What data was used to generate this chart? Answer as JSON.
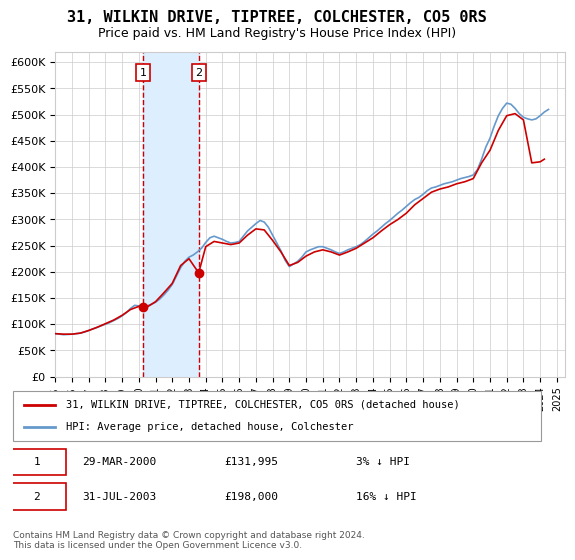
{
  "title": "31, WILKIN DRIVE, TIPTREE, COLCHESTER, CO5 0RS",
  "subtitle": "Price paid vs. HM Land Registry's House Price Index (HPI)",
  "ylabel_ticks": [
    "£0",
    "£50K",
    "£100K",
    "£150K",
    "£200K",
    "£250K",
    "£300K",
    "£350K",
    "£400K",
    "£450K",
    "£500K",
    "£550K",
    "£600K"
  ],
  "ylim": [
    0,
    620000
  ],
  "xlim_start": 1995.0,
  "xlim_end": 2025.5,
  "legend_line1": "31, WILKIN DRIVE, TIPTREE, COLCHESTER, CO5 0RS (detached house)",
  "legend_line2": "HPI: Average price, detached house, Colchester",
  "transaction1_date": "29-MAR-2000",
  "transaction1_price": "£131,995",
  "transaction1_pct": "3% ↓ HPI",
  "transaction2_date": "31-JUL-2003",
  "transaction2_price": "£198,000",
  "transaction2_pct": "16% ↓ HPI",
  "footer": "Contains HM Land Registry data © Crown copyright and database right 2024.\nThis data is licensed under the Open Government Licence v3.0.",
  "line_color_red": "#cc0000",
  "line_color_blue": "#6699cc",
  "shading_color": "#ddeeff",
  "marker1_x": 2000.24,
  "marker1_y": 131995,
  "marker2_x": 2003.58,
  "marker2_y": 198000,
  "hpi_data_x": [
    1995.0,
    1995.25,
    1995.5,
    1995.75,
    1996.0,
    1996.25,
    1996.5,
    1996.75,
    1997.0,
    1997.25,
    1997.5,
    1997.75,
    1998.0,
    1998.25,
    1998.5,
    1998.75,
    1999.0,
    1999.25,
    1999.5,
    1999.75,
    2000.0,
    2000.25,
    2000.5,
    2000.75,
    2001.0,
    2001.25,
    2001.5,
    2001.75,
    2002.0,
    2002.25,
    2002.5,
    2002.75,
    2003.0,
    2003.25,
    2003.5,
    2003.75,
    2004.0,
    2004.25,
    2004.5,
    2004.75,
    2005.0,
    2005.25,
    2005.5,
    2005.75,
    2006.0,
    2006.25,
    2006.5,
    2006.75,
    2007.0,
    2007.25,
    2007.5,
    2007.75,
    2008.0,
    2008.25,
    2008.5,
    2008.75,
    2009.0,
    2009.25,
    2009.5,
    2009.75,
    2010.0,
    2010.25,
    2010.5,
    2010.75,
    2011.0,
    2011.25,
    2011.5,
    2011.75,
    2012.0,
    2012.25,
    2012.5,
    2012.75,
    2013.0,
    2013.25,
    2013.5,
    2013.75,
    2014.0,
    2014.25,
    2014.5,
    2014.75,
    2015.0,
    2015.25,
    2015.5,
    2015.75,
    2016.0,
    2016.25,
    2016.5,
    2016.75,
    2017.0,
    2017.25,
    2017.5,
    2017.75,
    2018.0,
    2018.25,
    2018.5,
    2018.75,
    2019.0,
    2019.25,
    2019.5,
    2019.75,
    2020.0,
    2020.25,
    2020.5,
    2020.75,
    2021.0,
    2021.25,
    2021.5,
    2021.75,
    2022.0,
    2022.25,
    2022.5,
    2022.75,
    2023.0,
    2023.25,
    2023.5,
    2023.75,
    2024.0,
    2024.25,
    2024.5
  ],
  "hpi_data_y": [
    82000,
    81000,
    80000,
    80500,
    81000,
    82000,
    83000,
    85000,
    88000,
    91000,
    94000,
    97000,
    100000,
    103000,
    107000,
    111000,
    116000,
    122000,
    130000,
    136000,
    135000,
    133000,
    135000,
    138000,
    142000,
    148000,
    156000,
    165000,
    176000,
    192000,
    208000,
    220000,
    228000,
    232000,
    238000,
    245000,
    256000,
    265000,
    268000,
    265000,
    262000,
    258000,
    255000,
    256000,
    258000,
    268000,
    278000,
    285000,
    292000,
    298000,
    295000,
    285000,
    270000,
    255000,
    240000,
    222000,
    210000,
    215000,
    220000,
    228000,
    238000,
    242000,
    245000,
    248000,
    248000,
    245000,
    242000,
    238000,
    235000,
    238000,
    242000,
    245000,
    248000,
    252000,
    258000,
    265000,
    272000,
    278000,
    285000,
    292000,
    298000,
    305000,
    312000,
    318000,
    325000,
    332000,
    338000,
    342000,
    348000,
    355000,
    360000,
    362000,
    365000,
    368000,
    370000,
    372000,
    375000,
    378000,
    380000,
    382000,
    385000,
    395000,
    415000,
    438000,
    455000,
    478000,
    498000,
    512000,
    522000,
    520000,
    512000,
    502000,
    495000,
    492000,
    490000,
    492000,
    498000,
    505000,
    510000
  ],
  "prop_data_x": [
    1995.0,
    1995.5,
    1996.0,
    1996.5,
    1997.0,
    1997.5,
    1998.0,
    1998.5,
    1999.0,
    1999.5,
    2000.0,
    2000.24,
    2000.5,
    2001.0,
    2001.5,
    2002.0,
    2002.5,
    2003.0,
    2003.58,
    2004.0,
    2004.5,
    2005.0,
    2005.5,
    2006.0,
    2006.5,
    2007.0,
    2007.5,
    2008.0,
    2008.5,
    2009.0,
    2009.5,
    2010.0,
    2010.5,
    2011.0,
    2011.5,
    2012.0,
    2012.5,
    2013.0,
    2013.5,
    2014.0,
    2014.5,
    2015.0,
    2015.5,
    2016.0,
    2016.5,
    2017.0,
    2017.5,
    2018.0,
    2018.5,
    2019.0,
    2019.5,
    2020.0,
    2020.5,
    2021.0,
    2021.5,
    2022.0,
    2022.5,
    2023.0,
    2023.5,
    2024.0,
    2024.25
  ],
  "prop_data_y": [
    82000,
    81000,
    81000,
    83000,
    88000,
    94000,
    101000,
    108000,
    117000,
    128000,
    134000,
    131995,
    133000,
    143000,
    160000,
    178000,
    212000,
    225000,
    198000,
    248000,
    258000,
    255000,
    252000,
    255000,
    270000,
    282000,
    280000,
    260000,
    238000,
    212000,
    218000,
    230000,
    238000,
    242000,
    238000,
    232000,
    238000,
    245000,
    255000,
    265000,
    278000,
    290000,
    300000,
    312000,
    328000,
    340000,
    352000,
    358000,
    362000,
    368000,
    372000,
    378000,
    408000,
    432000,
    470000,
    498000,
    502000,
    490000,
    408000,
    410000,
    415000
  ]
}
